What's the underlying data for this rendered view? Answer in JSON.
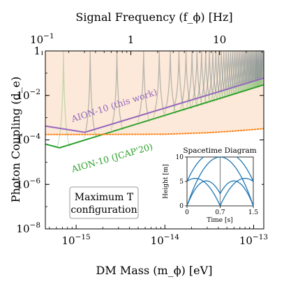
{
  "chart_data": {
    "type": "line",
    "xlabel": "DM Mass (m_ϕ) [eV]",
    "top_xlabel": "Signal Frequency (f_ϕ) [Hz]",
    "ylabel": "Photon Coupling (d_e)",
    "x_scale": "log",
    "y_scale": "log",
    "xlim": [
      4.5e-16,
      1.3e-13
    ],
    "ylim": [
      1e-08,
      1
    ],
    "x_ticks": [
      {
        "value": 1e-15,
        "label": "10^{-15}"
      },
      {
        "value": 1e-14,
        "label": "10^{-14}"
      },
      {
        "value": 1e-13,
        "label": "10^{-13}"
      }
    ],
    "top_x_ticks": [
      {
        "value": 0.1,
        "label": "10^{-1}"
      },
      {
        "value": 1,
        "label": "1"
      },
      {
        "value": 10,
        "label": "10"
      }
    ],
    "y_ticks": [
      {
        "value": 1,
        "label": "1"
      },
      {
        "value": 0.01,
        "label": "10^{-2}"
      },
      {
        "value": 0.0001,
        "label": "10^{-4}"
      },
      {
        "value": 1e-06,
        "label": "10^{-6}"
      },
      {
        "value": 1e-08,
        "label": "10^{-8}"
      }
    ],
    "region_fill": {
      "color": "#fde9d9",
      "boundary": "orange-dotted"
    },
    "series": [
      {
        "name": "AION-10 (this work)",
        "color": "#9467bd",
        "style": "solid",
        "x": [
          4.5e-16,
          1.25e-15,
          1.3e-13
        ],
        "y": [
          0.00042,
          0.00022,
          0.06
        ]
      },
      {
        "name": "AION-10 (JCAP'20)",
        "color": "#2ca02c",
        "style": "solid",
        "x": [
          4.5e-16,
          6.5e-16,
          1.3e-13
        ],
        "y": [
          6.5e-05,
          4.4e-05,
          0.03
        ]
      },
      {
        "name": "",
        "color": "#ff7f0e",
        "style": "dotted",
        "x": [
          4.5e-16,
          1e-15,
          1e-14,
          3e-14,
          6e-14,
          1.3e-13
        ],
        "y": [
          0.000175,
          0.000175,
          0.00018,
          0.00021,
          0.00025,
          0.00032
        ]
      }
    ],
    "resonance_masses": [
      7.2e-16,
      1.44e-15,
      2.88e-15,
      5.76e-15,
      8.64e-15,
      1.15e-14,
      1.44e-14,
      1.73e-14,
      2.02e-14,
      2.3e-14,
      2.59e-14,
      2.88e-14,
      3.17e-14,
      3.46e-14,
      3.75e-14,
      4.03e-14,
      4.32e-14,
      4.61e-14,
      4.9e-14,
      5.18e-14,
      5.47e-14,
      5.76e-14,
      6.05e-14,
      6.34e-14,
      6.62e-14,
      6.91e-14,
      7.2e-14,
      7.49e-14,
      7.78e-14,
      8.06e-14,
      8.35e-14,
      8.64e-14,
      8.93e-14,
      9.22e-14,
      9.5e-14,
      9.79e-14,
      1.01e-13,
      1.04e-13,
      1.07e-13,
      1.09e-13,
      1.12e-13,
      1.15e-13,
      1.18e-13,
      1.21e-13,
      1.24e-13,
      1.27e-13
    ],
    "annotation_box": "Maximum T configuration",
    "annotation_lines": [
      "Maximum T",
      "configuration"
    ],
    "inset": {
      "title": "Spacetime Diagram",
      "xlabel": "Time [s]",
      "ylabel": "Height [m]",
      "xlim": [
        0,
        1.5
      ],
      "ylim": [
        0,
        10
      ],
      "x_ticks": [
        "0",
        "0.7",
        "1.5"
      ],
      "y_ticks": [
        "0",
        "5",
        "10"
      ],
      "lines_color": "#1f77b4"
    }
  }
}
